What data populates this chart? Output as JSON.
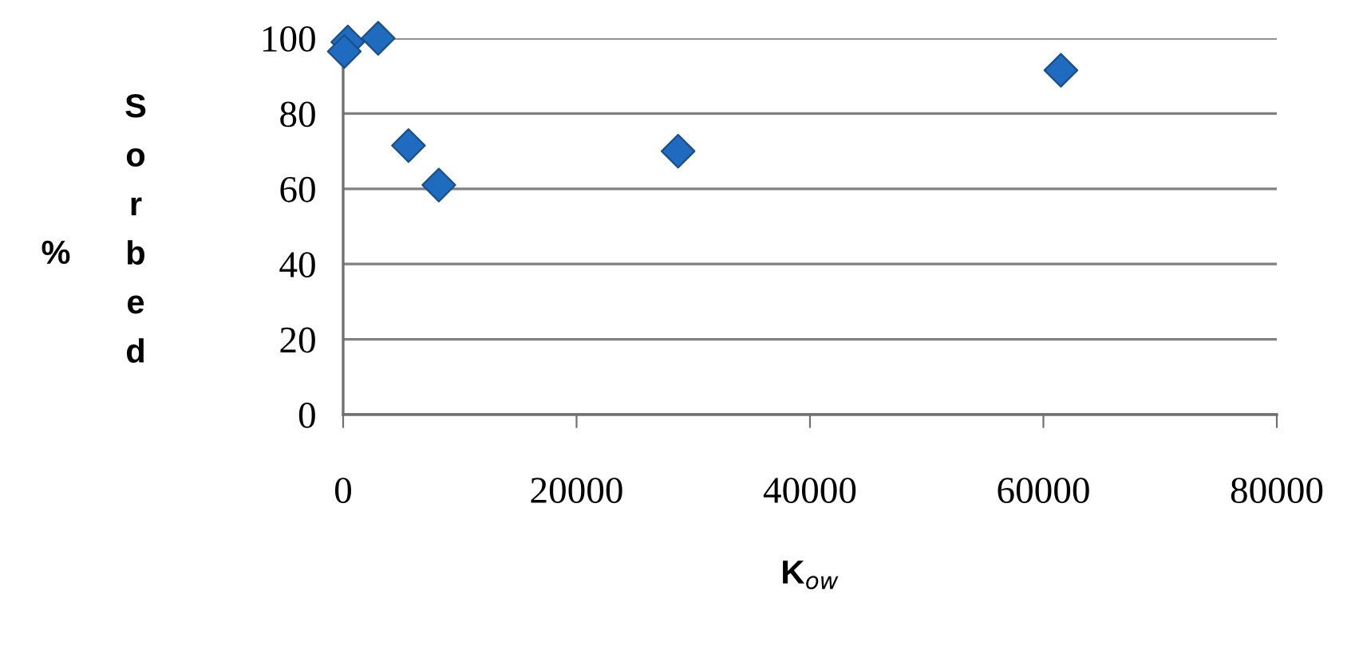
{
  "chart_data": {
    "type": "scatter",
    "xlabel": "K$_{ow}$",
    "ylabel": "% Sorbed",
    "x": [
      100,
      400,
      3000,
      5600,
      8200,
      28700,
      61500
    ],
    "values": [
      96.5,
      99,
      100,
      71.5,
      61,
      70,
      91.5
    ],
    "color": "#1f6bbf",
    "marker": "diamond",
    "xlim": [
      0,
      80000
    ],
    "xticks": [
      0,
      20000,
      40000,
      60000,
      80000
    ],
    "ylim": [
      0,
      100
    ],
    "yticks": [
      0,
      20,
      40,
      60,
      80,
      100
    ],
    "grid": "y",
    "legend": false
  }
}
